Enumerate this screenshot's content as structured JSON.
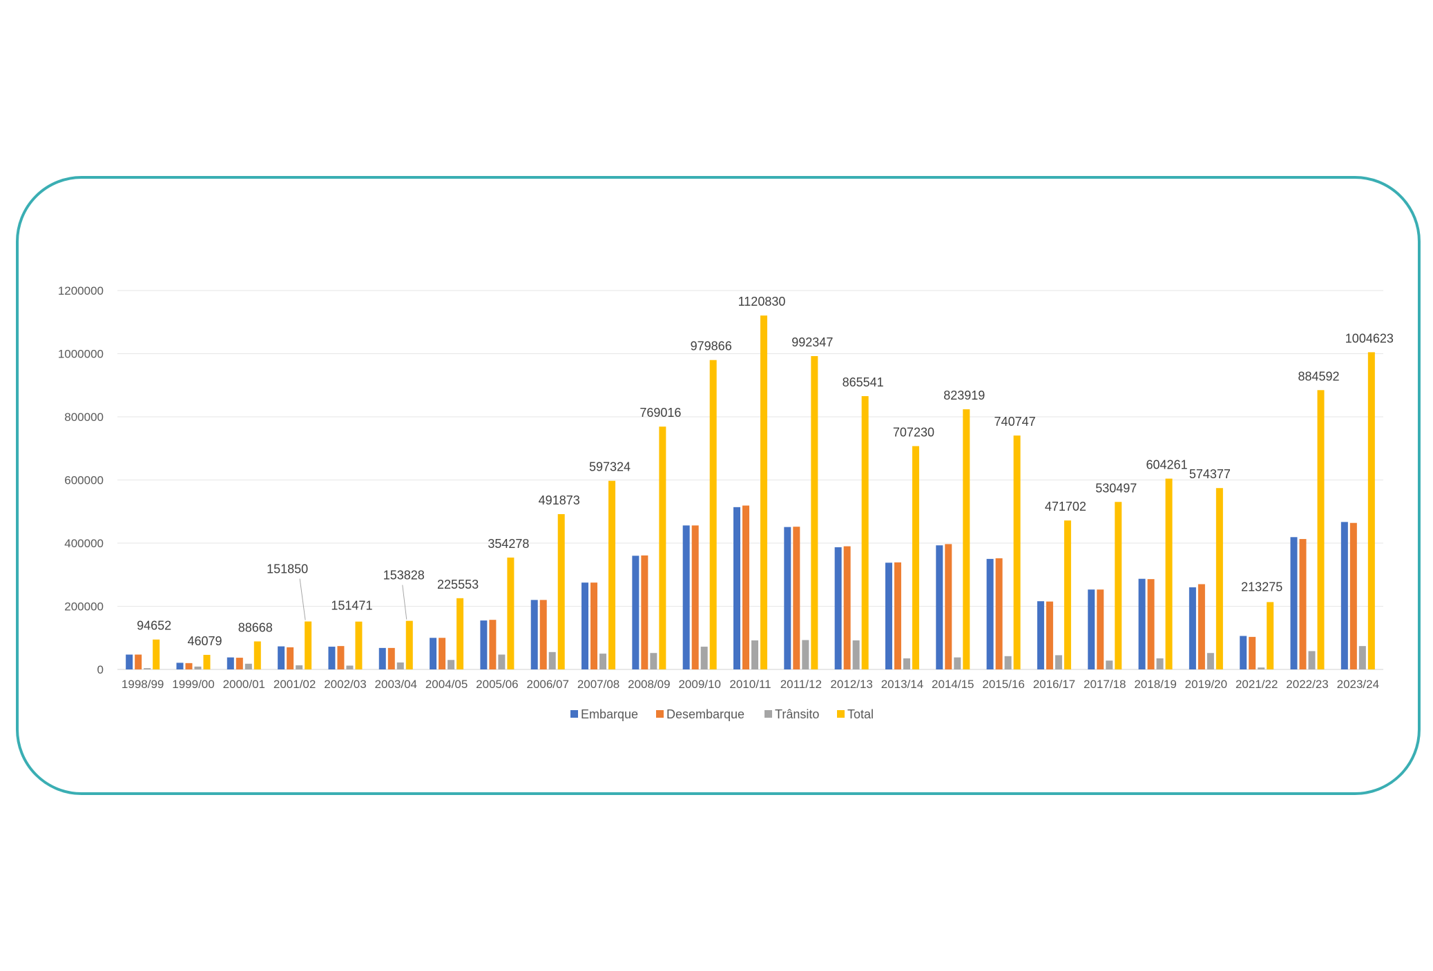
{
  "chart_data": {
    "type": "bar",
    "categories": [
      "1998/99",
      "1999/00",
      "2000/01",
      "2001/02",
      "2002/03",
      "2003/04",
      "2004/05",
      "2005/06",
      "2006/07",
      "2007/08",
      "2008/09",
      "2009/10",
      "2010/11",
      "2011/12",
      "2012/13",
      "2013/14",
      "2014/15",
      "2015/16",
      "2016/17",
      "2017/18",
      "2018/19",
      "2019/20",
      "2021/22",
      "2022/23",
      "2023/24"
    ],
    "series": [
      {
        "name": "Embarque",
        "color": "#4472c4",
        "values": [
          47000,
          21000,
          38000,
          73000,
          72000,
          68000,
          100000,
          155000,
          220000,
          275000,
          360000,
          456000,
          514000,
          451000,
          387000,
          338000,
          393000,
          350000,
          216000,
          253000,
          287000,
          260000,
          106000,
          419000,
          467000
        ]
      },
      {
        "name": "Desembarque",
        "color": "#ed7d31",
        "values": [
          47000,
          20000,
          37000,
          70000,
          74000,
          68000,
          100000,
          157000,
          220000,
          275000,
          361000,
          456000,
          519000,
          452000,
          390000,
          339000,
          397000,
          352000,
          215000,
          253000,
          286000,
          270000,
          103000,
          413000,
          464000
        ]
      },
      {
        "name": "Trânsito",
        "color": "#a5a5a5",
        "values": [
          4000,
          9000,
          18000,
          13000,
          12000,
          22000,
          30000,
          47000,
          55000,
          50000,
          52000,
          72000,
          92000,
          93000,
          92000,
          35000,
          38000,
          42000,
          45000,
          28000,
          35000,
          52000,
          6000,
          58000,
          74000
        ]
      },
      {
        "name": "Total",
        "color": "#ffc000",
        "values": [
          94652,
          46079,
          88668,
          151850,
          151471,
          153828,
          225553,
          354278,
          491873,
          597324,
          769016,
          979866,
          1120830,
          992347,
          865541,
          707230,
          823919,
          740747,
          471702,
          530497,
          604261,
          574377,
          213275,
          884592,
          1004623
        ]
      }
    ],
    "data_labels": [
      "94652",
      "46079",
      "88668",
      "151850",
      "151471",
      "153828",
      "225553",
      "354278",
      "491873",
      "597324",
      "769016",
      "979866",
      "1120830",
      "992347",
      "865541",
      "707230",
      "823919",
      "740747",
      "471702",
      "530497",
      "604261",
      "574377",
      "213275",
      "884592",
      "1004623"
    ],
    "yticks": [
      "0",
      "200000",
      "400000",
      "600000",
      "800000",
      "1000000",
      "1200000"
    ],
    "ylim": [
      0,
      1200000
    ],
    "grid": true,
    "legend": "bottom",
    "title": "",
    "xlabel": "",
    "ylabel": ""
  },
  "frame_color": "#3aaeb3",
  "grid_color": "#e6e6e6"
}
